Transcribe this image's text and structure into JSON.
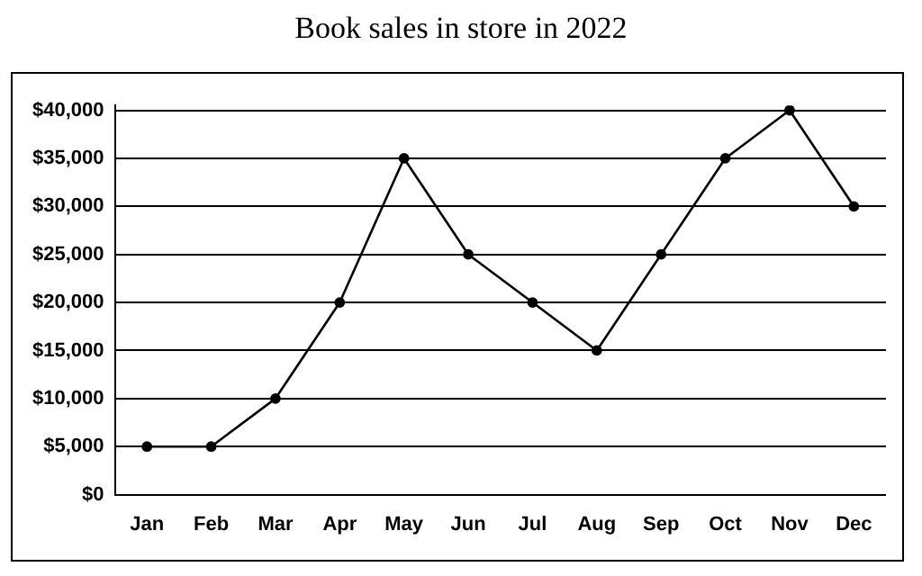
{
  "chart_data": {
    "type": "line",
    "title": "Book sales in store in 2022",
    "categories": [
      "Jan",
      "Feb",
      "Mar",
      "Apr",
      "May",
      "Jun",
      "Jul",
      "Aug",
      "Sep",
      "Oct",
      "Nov",
      "Dec"
    ],
    "values": [
      5000,
      5000,
      10000,
      20000,
      35000,
      25000,
      20000,
      15000,
      25000,
      35000,
      40000,
      30000
    ],
    "color": "#000000",
    "marker": "circle",
    "line_style": "solid",
    "grid": "y",
    "legend": false,
    "ylim": [
      0,
      40500
    ],
    "yticks": [
      {
        "value": 0,
        "label": "$0"
      },
      {
        "value": 5000,
        "label": "$5,000"
      },
      {
        "value": 10000,
        "label": "$10,000"
      },
      {
        "value": 15000,
        "label": "$15,000"
      },
      {
        "value": 20000,
        "label": "$20,000"
      },
      {
        "value": 25000,
        "label": "$25,000"
      },
      {
        "value": 30000,
        "label": "$30,000"
      },
      {
        "value": 35000,
        "label": "$35,000"
      },
      {
        "value": 40000,
        "label": "$40,000"
      }
    ]
  }
}
